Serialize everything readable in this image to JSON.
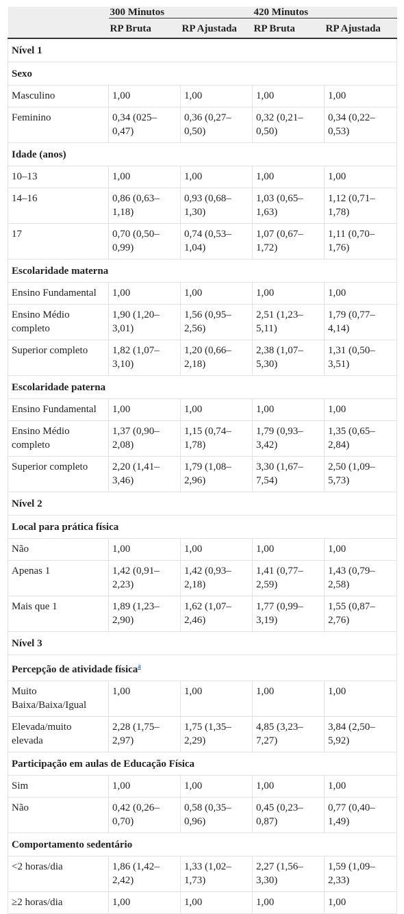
{
  "table": {
    "header": {
      "groups": [
        "300 Minutos",
        "420 Minutos"
      ],
      "columns": [
        "RP Bruta",
        "RP Ajustada",
        "RP Bruta",
        "RP Ajustada"
      ]
    },
    "rows": [
      {
        "section": "Nível 1"
      },
      {
        "section": "Sexo"
      },
      {
        "label": "Masculino",
        "cells": [
          "1,00",
          "1,00",
          "1,00",
          "1,00"
        ]
      },
      {
        "label": "Feminino",
        "cells": [
          "0,34 (025–0,47)",
          "0,36 (0,27–0,50)",
          "0,32 (0,21–0,50)",
          "0,34 (0,22–0,53)"
        ]
      },
      {
        "section": "Idade (anos)"
      },
      {
        "label": "10–13",
        "cells": [
          "1,00",
          "1,00",
          "1,00",
          "1,00"
        ]
      },
      {
        "label": "14–16",
        "cells": [
          "0,86 (0,63–1,18)",
          "0,93 (0,68–1,30)",
          "1,03 (0,65–1,63)",
          "1,12 (0,71–1,78)"
        ]
      },
      {
        "label": "17",
        "cells": [
          "0,70 (0,50–0,99)",
          "0,74 (0,53–1,04)",
          "1,07 (0,67–1,72)",
          "1,11 (0,70–1,76)"
        ]
      },
      {
        "section": "Escolaridade materna"
      },
      {
        "label": "Ensino Fundamental",
        "cells": [
          "1,00",
          "1,00",
          "1,00",
          "1,00"
        ]
      },
      {
        "label": "Ensino Médio completo",
        "cells": [
          "1,90 (1,20–3,01)",
          "1,56 (0,95–2,56)",
          "2,51 (1,23–5,11)",
          "1,79 (0,77–4,14)"
        ]
      },
      {
        "label": "Superior completo",
        "cells": [
          "1,82 (1,07–3,10)",
          "1,20 (0,66–2,18)",
          "2,38 (1,07–5,30)",
          "1,31 (0,50–3,51)"
        ]
      },
      {
        "section": "Escolaridade paterna"
      },
      {
        "label": "Ensino Fundamental",
        "cells": [
          "1,00",
          "1,00",
          "1,00",
          "1,00"
        ]
      },
      {
        "label": "Ensino Médio completo",
        "cells": [
          "1,37 (0,90–2,08)",
          "1,15 (0,74–1,78)",
          "1,79 (0,93–3,42)",
          "1,35 (0,65–2,84)"
        ]
      },
      {
        "label": "Superior completo",
        "cells": [
          "2,20 (1,41–3,46)",
          "1,79 (1,08–2,96)",
          "3,30 (1,67–7,54)",
          "2,50 (1,09–5,73)"
        ]
      },
      {
        "section": "Nível 2"
      },
      {
        "section": "Local para prática física"
      },
      {
        "label": "Não",
        "cells": [
          "1,00",
          "1,00",
          "1,00",
          "1,00"
        ]
      },
      {
        "label": "Apenas 1",
        "cells": [
          "1,42 (0,91–2,23)",
          "1,42 (0,93–2,18)",
          "1,41 (0,77–2,59)",
          "1,43 (0,79–2,58)"
        ]
      },
      {
        "label": "Mais que 1",
        "cells": [
          "1,89 (1,23–2,90)",
          "1,62 (1,07–2,46)",
          "1,77 (0,99–3,19)",
          "1,55 (0,87–2,76)"
        ]
      },
      {
        "section": "Nível 3"
      },
      {
        "section": "Percepção de atividade física",
        "sup": "a"
      },
      {
        "label": "Muito Baixa/Baixa/Igual",
        "cells": [
          "1,00",
          "1,00",
          "1,00",
          "1,00"
        ]
      },
      {
        "label": "Elevada/muito elevada",
        "cells": [
          "2,28 (1,75–2,97)",
          "1,75 (1,35–2,29)",
          "4,85 (3,23–7,27)",
          "3,84 (2,50–5,92)"
        ]
      },
      {
        "section": "Participação em aulas de Educação Física"
      },
      {
        "label": "Sim",
        "cells": [
          "1,00",
          "1,00",
          "1,00",
          "1,00"
        ]
      },
      {
        "label": "Não",
        "cells": [
          "0,42 (0,26–0,70)",
          "0,58 (0,35–0,96)",
          "0,45 (0,23–0,87)",
          "0,77 (0,40–1,49)"
        ]
      },
      {
        "section": "Comportamento sedentário"
      },
      {
        "label": "<2 horas/dia",
        "cells": [
          "1,86 (1,42–2,42)",
          "1,33 (1,02–1,73)",
          "2,27 (1,56–3,30)",
          "1,59 (1,09–2,33)"
        ]
      },
      {
        "label": "≥2 horas/dia",
        "cells": [
          "1,00",
          "1,00",
          "1,00",
          "1,00"
        ]
      }
    ]
  }
}
